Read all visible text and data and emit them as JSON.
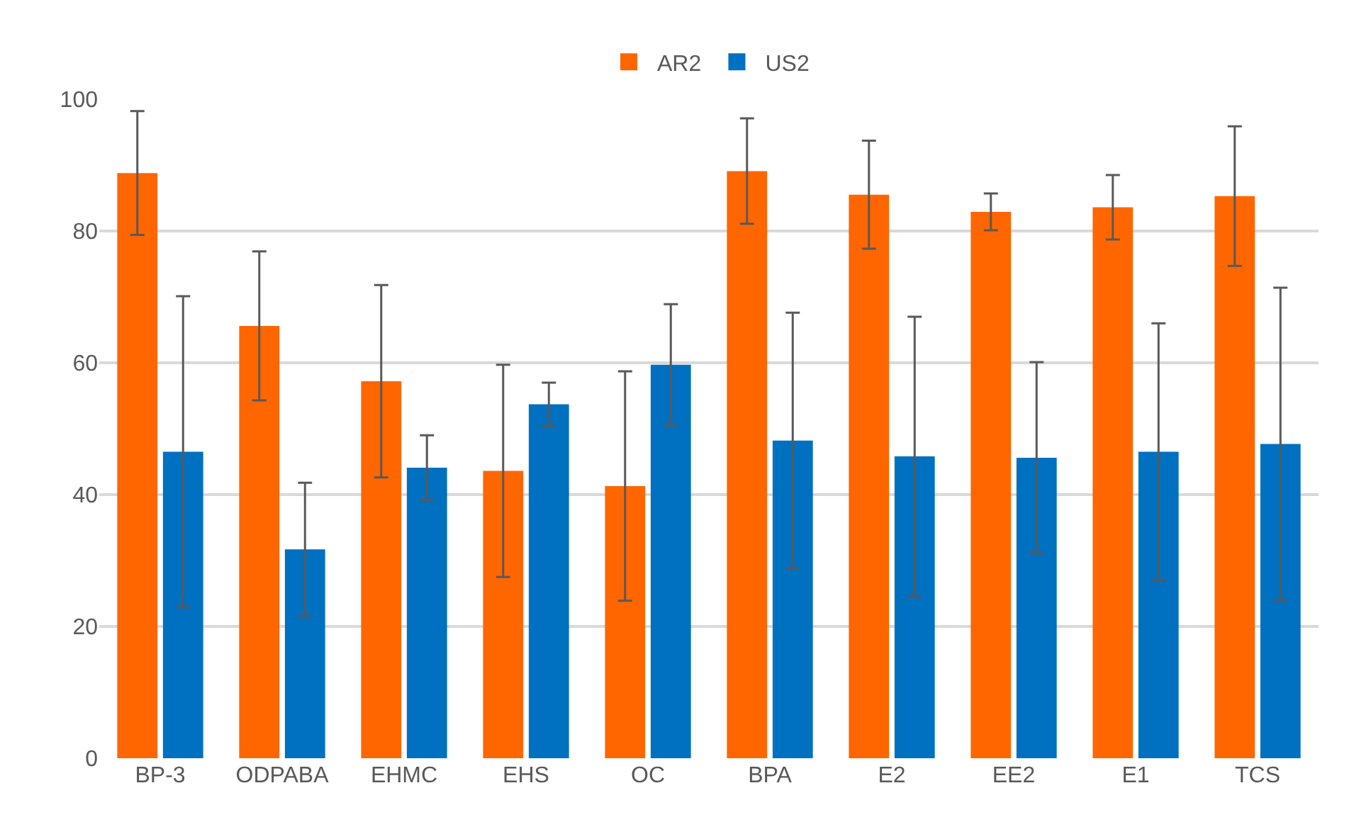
{
  "chart_data": {
    "type": "bar",
    "categories": [
      "BP-3",
      "ODPABA",
      "EHMC",
      "EHS",
      "OC",
      "BPA",
      "E2",
      "EE2",
      "E1",
      "TCS"
    ],
    "series": [
      {
        "name": "AR2",
        "color": "#ff6600",
        "values": [
          88.8,
          65.6,
          57.2,
          43.6,
          41.3,
          89.1,
          85.5,
          82.9,
          83.6,
          85.3
        ],
        "errors": [
          9.4,
          11.3,
          14.6,
          16.1,
          17.4,
          8.0,
          8.2,
          2.8,
          4.9,
          10.6
        ]
      },
      {
        "name": "US2",
        "color": "#0070c0",
        "values": [
          46.5,
          31.7,
          44.1,
          53.7,
          59.7,
          48.2,
          45.8,
          45.6,
          46.5,
          47.7
        ],
        "errors": [
          23.6,
          10.1,
          4.9,
          3.3,
          9.2,
          19.4,
          21.2,
          14.5,
          19.5,
          23.7
        ]
      }
    ],
    "ylim": [
      0,
      100
    ],
    "yticks": [
      0,
      20,
      40,
      60,
      80,
      100
    ],
    "grid": "y",
    "legend": "top"
  }
}
